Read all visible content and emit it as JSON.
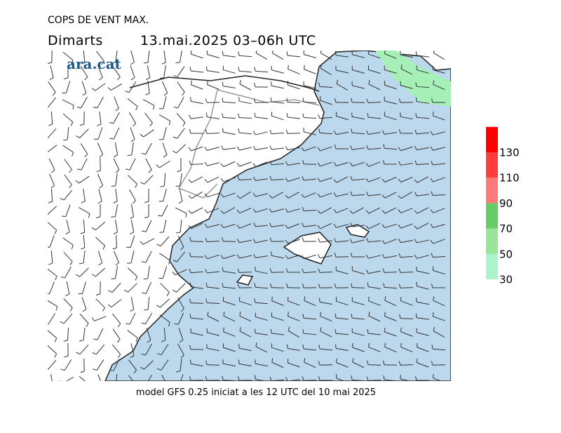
{
  "header": {
    "title": "COPS DE VENT MAX.",
    "day": "Dimarts",
    "date": "13.mai.2025 03–06h UTC",
    "logo": "ara.cat"
  },
  "footer": "model GFS 0.25 iniciat a les 12 UTC del 10 mai 2025",
  "colorbar": {
    "ticks": [
      30,
      50,
      70,
      90,
      110,
      130
    ],
    "colors": [
      "#aaf5cc",
      "#99e699",
      "#66cc66",
      "#ff7a7a",
      "#ff3d3d",
      "#ff0000"
    ]
  }
}
